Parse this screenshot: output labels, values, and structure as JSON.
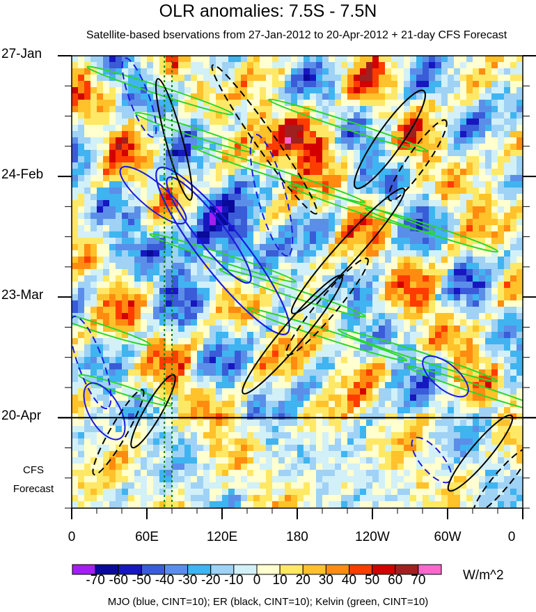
{
  "chart_data": {
    "type": "heatmap",
    "title": "OLR anomalies: 7.5S - 7.5N",
    "subtitle": "Satellite-based bservations from 27-Jan-2012 to 20-Apr-2012 + 21-day CFS Forecast",
    "x_ticks": [
      "0",
      "60E",
      "120E",
      "180",
      "120W",
      "60W",
      "0"
    ],
    "x_tick_lon": [
      0,
      60,
      120,
      180,
      240,
      300,
      360
    ],
    "y_ticks": [
      "27-Jan",
      "24-Feb",
      "23-Mar",
      "20-Apr"
    ],
    "y_tick_day": [
      0,
      28,
      56,
      84
    ],
    "ylim_days": [
      0,
      105
    ],
    "forecast_label": [
      "CFS",
      "Forecast"
    ],
    "forecast_start_day": 84,
    "forecast_end_day": 105,
    "colorbar": {
      "unit": "W/m^2",
      "labels": [
        "-70",
        "-60",
        "-50",
        "-40",
        "-30",
        "-20",
        "-10",
        "0",
        "10",
        "20",
        "30",
        "40",
        "50",
        "60",
        "70"
      ],
      "colors": [
        "#a020f0",
        "#0a0a9a",
        "#1717c0",
        "#3a5cd8",
        "#5b8ee8",
        "#3fb4f0",
        "#9fd2f5",
        "#d2f0f8",
        "#ffffd0",
        "#ffe866",
        "#ffc22a",
        "#ff8c10",
        "#ff3c00",
        "#d20000",
        "#a02020",
        "#ff66cc"
      ]
    },
    "contour_legend": "MJO (blue, CINT=10); ER (black, CINT=10); Kelvin (green, CINT=10)",
    "series_colors": {
      "mjo": "#1a1ae0",
      "er": "#000000",
      "kelvin": "#2ad62a",
      "reference": "#008000"
    },
    "reference_lines_lon": [
      74,
      80
    ],
    "grid": false
  }
}
